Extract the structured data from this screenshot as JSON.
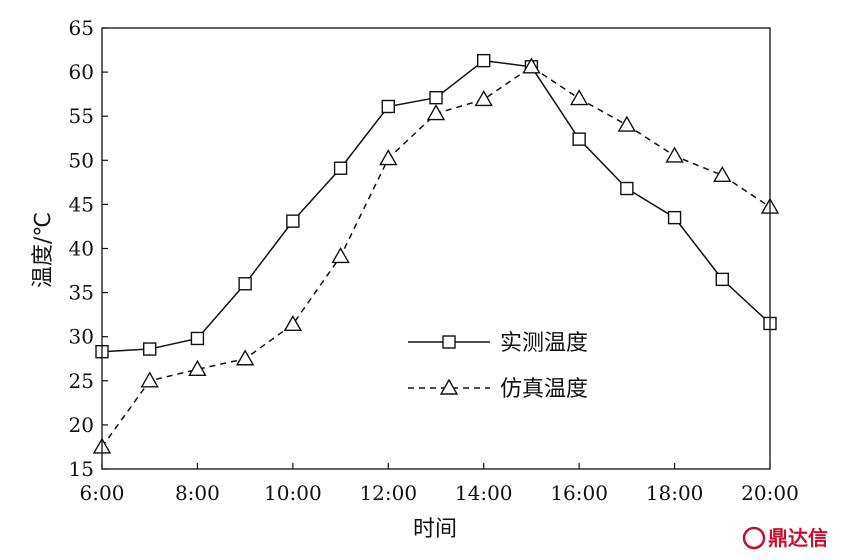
{
  "chart_data": {
    "type": "line",
    "xlabel": "时间",
    "ylabel": "温度/℃",
    "x_tick_labels": [
      "6:00",
      "8:00",
      "10:00",
      "12:00",
      "14:00",
      "16:00",
      "18:00",
      "20:00"
    ],
    "x_ticks": [
      6,
      8,
      10,
      12,
      14,
      16,
      18,
      20
    ],
    "y_ticks": [
      15,
      20,
      25,
      30,
      35,
      40,
      45,
      50,
      55,
      60,
      65
    ],
    "xlim": [
      6,
      20
    ],
    "ylim": [
      15,
      65
    ],
    "grid": false,
    "legend_position": "center-right",
    "x": [
      6,
      7,
      8,
      9,
      10,
      11,
      12,
      13,
      14,
      15,
      16,
      17,
      18,
      19,
      20
    ],
    "series": [
      {
        "name": "实测温度",
        "marker": "square",
        "line_style": "solid",
        "values": [
          28.3,
          28.6,
          29.8,
          36.0,
          43.1,
          49.1,
          56.1,
          57.1,
          61.3,
          60.6,
          52.4,
          46.8,
          43.5,
          36.5,
          31.5
        ]
      },
      {
        "name": "仿真温度",
        "marker": "triangle",
        "line_style": "dashed",
        "values": [
          17.5,
          25.0,
          26.3,
          27.5,
          31.4,
          39.1,
          50.2,
          55.3,
          56.9,
          60.6,
          57.0,
          54.0,
          50.5,
          48.3,
          44.7
        ]
      }
    ]
  },
  "watermark": {
    "text": "鼎达信",
    "color": "#c8102e"
  }
}
